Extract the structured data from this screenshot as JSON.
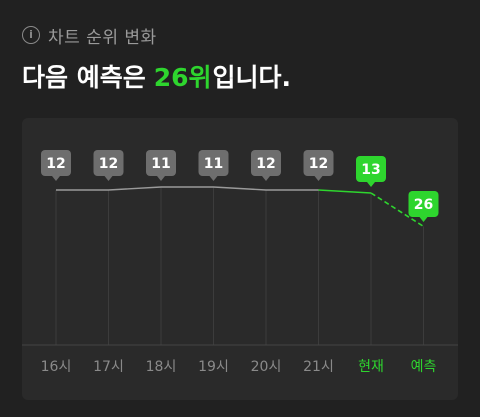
{
  "header": {
    "icon": "info-icon",
    "title": "차트 순위 변화"
  },
  "headline": {
    "prefix": "다음 예측은 ",
    "rank_text": "26위",
    "suffix": "입니다."
  },
  "colors": {
    "background": "#212121",
    "card": "#2a2a2a",
    "gray_badge": "#6e6e6e",
    "green_accent": "#2ed52e",
    "gray_line": "#9a9a9a"
  },
  "chart_data": {
    "type": "line",
    "title": "",
    "xlabel": "",
    "ylabel": "",
    "categories": [
      "16시",
      "17시",
      "18시",
      "19시",
      "20시",
      "21시",
      "현재",
      "예측"
    ],
    "values": [
      12,
      12,
      11,
      11,
      12,
      12,
      13,
      26
    ],
    "highlight_categories": [
      "현재",
      "예측"
    ],
    "predicted_category": "예측",
    "y_axis_inverted": true,
    "ylim": [
      10,
      27
    ],
    "grid": "vertical"
  }
}
